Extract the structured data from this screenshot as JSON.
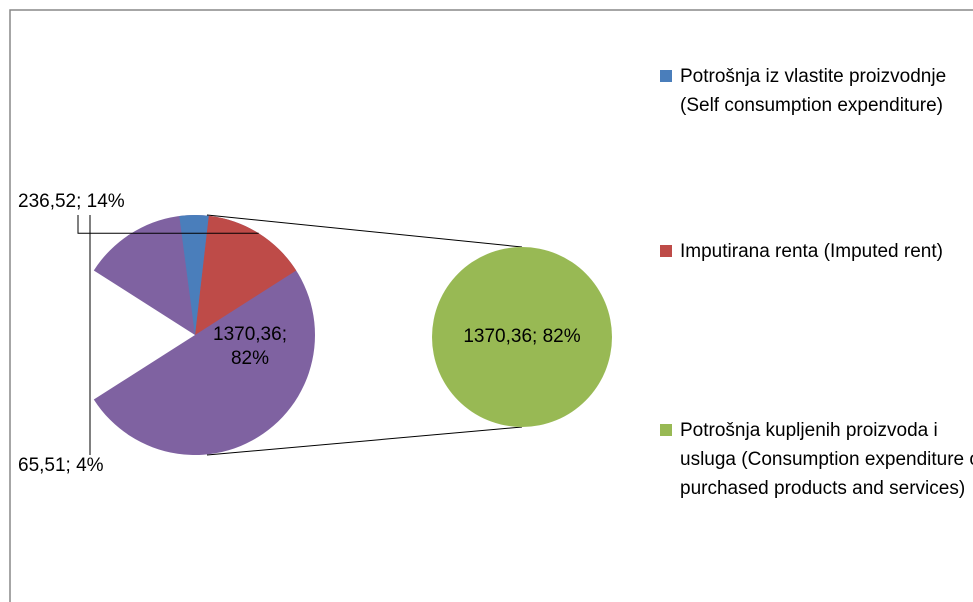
{
  "chart_data": {
    "type": "pie-of-pie",
    "categories": [
      "Potrošnja iz vlastite proizvodnje (Self consumption expenditure)",
      "Imputirana renta (Imputed rent)",
      "Potrošnja kupljenih proizvoda i usluga (Consumption expenditure of purchased products and services)"
    ],
    "values": [
      65.51,
      236.52,
      1370.36
    ],
    "value_labels": [
      "65,51; 4%",
      "236,52; 14%",
      "1370,36; 82%"
    ],
    "colors": [
      "#4a7ebb",
      "#be4b48",
      "#98b954"
    ],
    "other_color": "#7f62a1",
    "legend": "right"
  }
}
